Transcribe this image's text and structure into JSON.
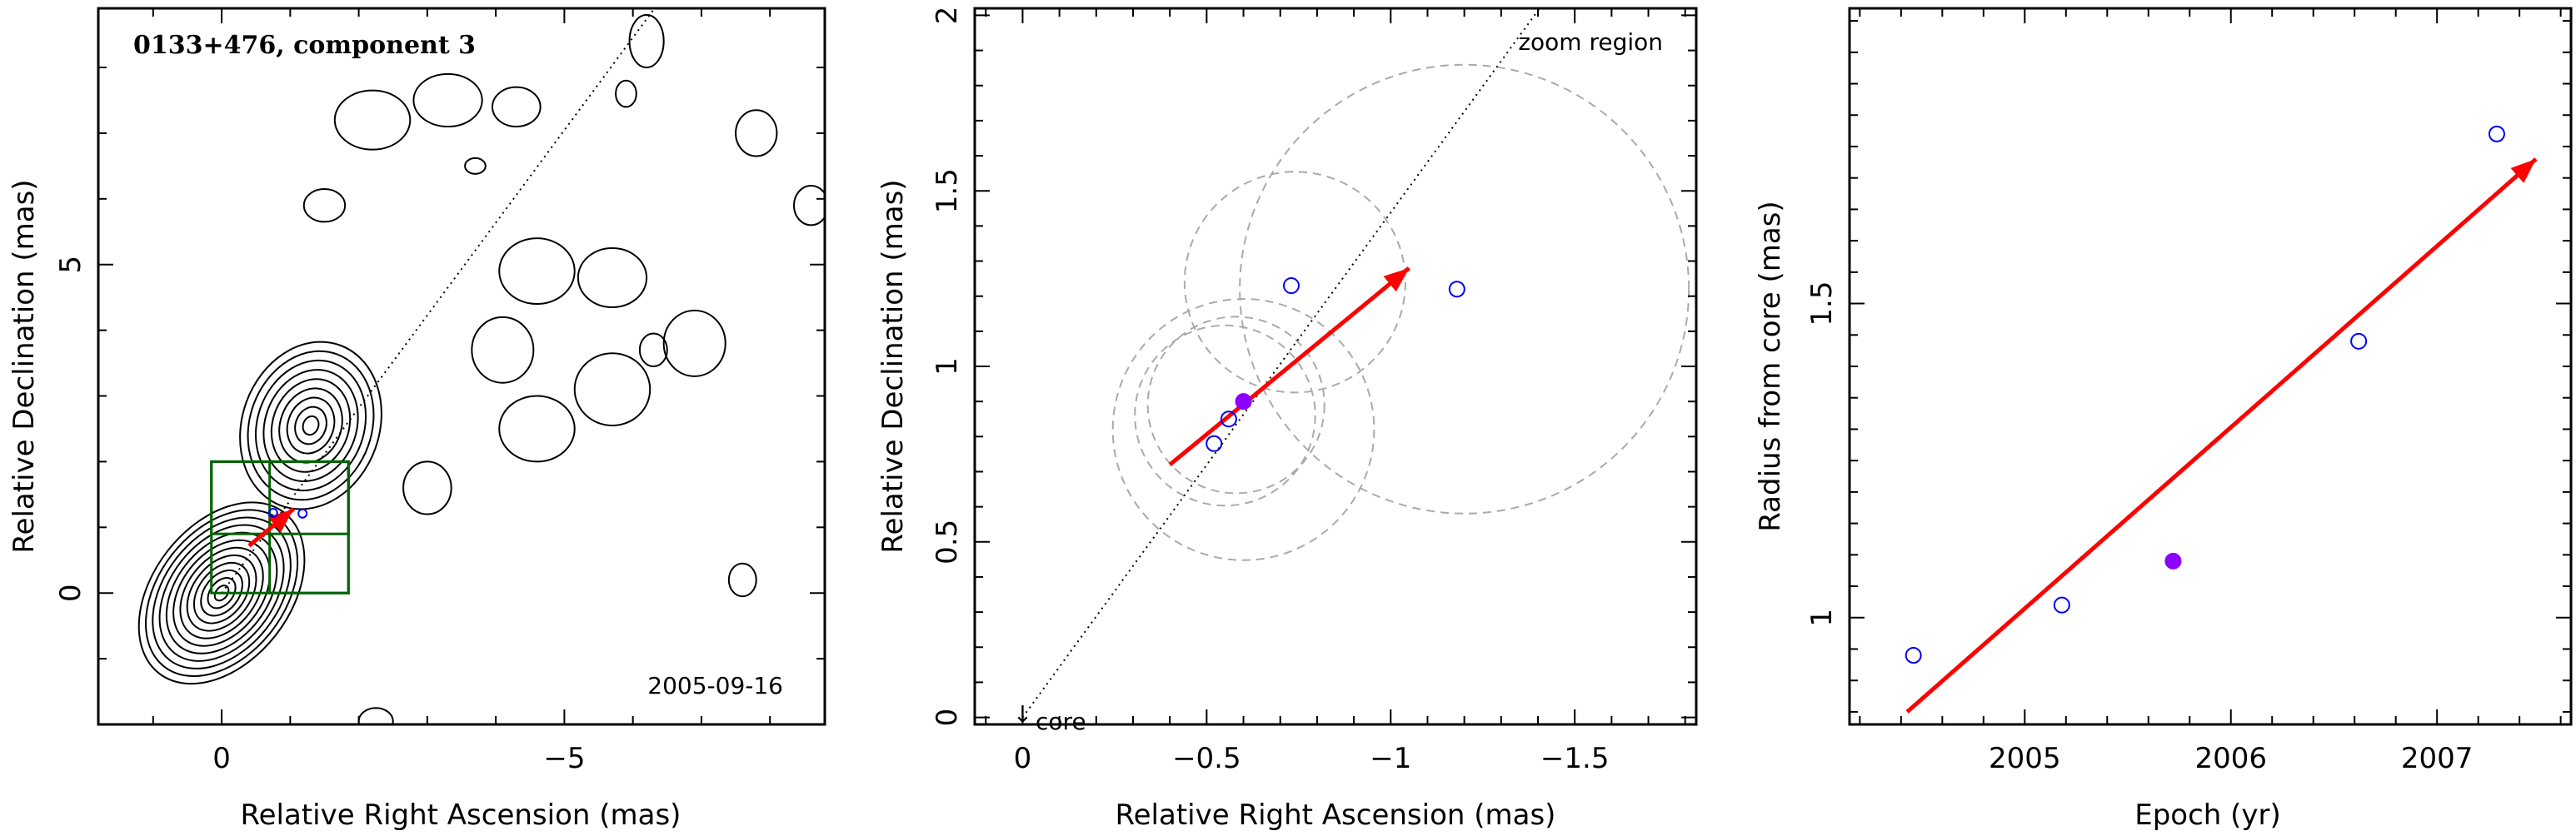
{
  "chart_data": [
    {
      "type": "contour",
      "title": "0133+476, component 3",
      "date_label": "2005-09-16",
      "xlabel": "Relative Right Ascension (mas)",
      "ylabel": "Relative Declination (mas)",
      "xlim": [
        1.8,
        -8.8
      ],
      "ylim": [
        -2.0,
        8.9
      ],
      "xticks": [
        0,
        -5
      ],
      "yticks": [
        0,
        5
      ],
      "xtick_labels": [
        "0",
        "−5"
      ],
      "ytick_labels": [
        "0",
        "5"
      ],
      "core_ellipse": {
        "cx": 0.0,
        "cy": 0.0,
        "rx": 1.0,
        "ry": 1.55,
        "angle": 38,
        "levels": 12
      },
      "secondary_ellipse": {
        "cx": -1.3,
        "cy": 2.55,
        "rx": 1.0,
        "ry": 1.3,
        "angle": 20,
        "levels": 9
      },
      "blobs": [
        {
          "cx": -2.2,
          "cy": 7.2,
          "rx": 0.55,
          "ry": 0.45
        },
        {
          "cx": -3.3,
          "cy": 7.5,
          "rx": 0.5,
          "ry": 0.4
        },
        {
          "cx": -4.3,
          "cy": 7.4,
          "rx": 0.35,
          "ry": 0.3
        },
        {
          "cx": -1.5,
          "cy": 5.9,
          "rx": 0.3,
          "ry": 0.25
        },
        {
          "cx": -3.7,
          "cy": 6.5,
          "rx": 0.15,
          "ry": 0.12
        },
        {
          "cx": -6.2,
          "cy": 8.4,
          "rx": 0.25,
          "ry": 0.4
        },
        {
          "cx": -5.9,
          "cy": 7.6,
          "rx": 0.15,
          "ry": 0.2
        },
        {
          "cx": -7.8,
          "cy": 7.0,
          "rx": 0.3,
          "ry": 0.35
        },
        {
          "cx": -8.6,
          "cy": 5.9,
          "rx": 0.25,
          "ry": 0.3
        },
        {
          "cx": -4.6,
          "cy": 4.9,
          "rx": 0.55,
          "ry": 0.5
        },
        {
          "cx": -5.7,
          "cy": 4.8,
          "rx": 0.5,
          "ry": 0.45
        },
        {
          "cx": -4.1,
          "cy": 3.7,
          "rx": 0.45,
          "ry": 0.5
        },
        {
          "cx": -4.6,
          "cy": 2.5,
          "rx": 0.55,
          "ry": 0.5
        },
        {
          "cx": -5.7,
          "cy": 3.1,
          "rx": 0.55,
          "ry": 0.55
        },
        {
          "cx": -6.3,
          "cy": 3.7,
          "rx": 0.2,
          "ry": 0.25
        },
        {
          "cx": -6.9,
          "cy": 3.8,
          "rx": 0.45,
          "ry": 0.5
        },
        {
          "cx": -3.0,
          "cy": 1.6,
          "rx": 0.35,
          "ry": 0.4
        },
        {
          "cx": -7.6,
          "cy": 0.2,
          "rx": 0.2,
          "ry": 0.25
        },
        {
          "cx": -2.25,
          "cy": -1.95,
          "rx": 0.25,
          "ry": 0.2
        }
      ],
      "jet_line": {
        "x": [
          0.0,
          -6.6
        ],
        "y": [
          0.0,
          9.3
        ]
      },
      "zoom_boxes": [
        {
          "x0": 0.15,
          "x1": -1.85,
          "y0": 0.0,
          "y1": 2.0
        },
        {
          "x0": 0.15,
          "x1": -1.85,
          "y0": 0.9,
          "y1": 2.0
        },
        {
          "x0": -0.7,
          "x1": -1.85,
          "y0": 0.0,
          "y1": 2.0
        }
      ],
      "arrow": {
        "x0": -0.4,
        "y0": 0.72,
        "x1": -1.05,
        "y1": 1.28
      },
      "points": [
        {
          "x": -0.75,
          "y": 1.22,
          "filled": false
        },
        {
          "x": -1.18,
          "y": 1.21,
          "filled": false
        }
      ]
    },
    {
      "type": "scatter",
      "annotations": [
        "zoom region",
        "core"
      ],
      "xlabel": "Relative Right Ascension (mas)",
      "ylabel": "Relative Declination (mas)",
      "xlim": [
        0.13,
        -1.83
      ],
      "ylim": [
        -0.02,
        2.02
      ],
      "xticks": [
        0,
        -0.5,
        -1,
        -1.5
      ],
      "yticks": [
        0,
        0.5,
        1,
        1.5,
        2
      ],
      "xtick_labels": [
        "0",
        "−0.5",
        "−1",
        "−1.5"
      ],
      "ytick_labels": [
        "0",
        "0.5",
        "1",
        "1.5",
        "2"
      ],
      "points": [
        {
          "x": -0.52,
          "y": 0.78,
          "filled": false,
          "r": 0.18
        },
        {
          "x": -0.56,
          "y": 0.85,
          "filled": false,
          "r": 0.27
        },
        {
          "x": -0.6,
          "y": 0.9,
          "filled": true,
          "r": 0.42
        },
        {
          "x": -0.73,
          "y": 1.23,
          "filled": false,
          "r": 0.52
        },
        {
          "x": -1.18,
          "y": 1.22,
          "filled": false,
          "r": 0.62
        }
      ],
      "circle_radii_note": "dashed circles show component sizes",
      "circles": [
        {
          "cx": -0.55,
          "cy": 0.86,
          "r": 0.245
        },
        {
          "cx": -0.58,
          "cy": 0.89,
          "r": 0.24
        },
        {
          "cx": -0.6,
          "cy": 0.82,
          "r": 0.355
        },
        {
          "cx": -0.74,
          "cy": 1.24,
          "r": 0.3
        },
        {
          "cx": -1.2,
          "cy": 1.22,
          "r": 0.61
        }
      ],
      "arrow": {
        "x0": -0.4,
        "y0": 0.72,
        "x1": -1.05,
        "y1": 1.28
      },
      "jet_line": {
        "x": [
          0.0,
          -1.46
        ],
        "y": [
          0.0,
          2.1
        ]
      }
    },
    {
      "type": "scatter",
      "xlabel": "Epoch (yr)",
      "ylabel": "Radius from core (mas)",
      "xlim": [
        2004.15,
        2007.65
      ],
      "ylim": [
        0.83,
        1.97
      ],
      "xticks": [
        2005,
        2006,
        2007
      ],
      "yticks": [
        1,
        1.5
      ],
      "xtick_labels": [
        "2005",
        "2006",
        "2007"
      ],
      "ytick_labels": [
        "1",
        "1.5"
      ],
      "points": [
        {
          "x": 2004.46,
          "y": 0.94,
          "filled": false
        },
        {
          "x": 2005.18,
          "y": 1.02,
          "filled": false
        },
        {
          "x": 2005.72,
          "y": 1.09,
          "filled": true
        },
        {
          "x": 2006.62,
          "y": 1.44,
          "filled": false
        },
        {
          "x": 2007.29,
          "y": 1.77,
          "filled": false
        }
      ],
      "arrow": {
        "x0": 2004.43,
        "y0": 0.85,
        "x1": 2007.48,
        "y1": 1.73
      }
    }
  ],
  "colors": {
    "arrow": "#ff0000",
    "point": "#0000ff",
    "filled_point": "#8c00ff",
    "zoom_box": "#006400",
    "contour": "#000000",
    "circle": "#aaaaaa"
  }
}
